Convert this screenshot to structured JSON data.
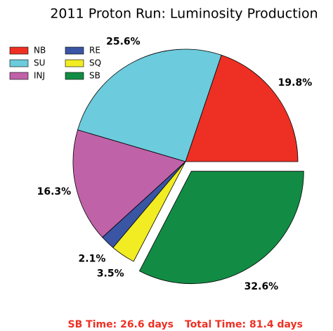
{
  "chart_data": {
    "type": "pie",
    "title": "2011 Proton Run: Luminosity Production",
    "categories": [
      "NB",
      "SU",
      "INJ",
      "RE",
      "SQ",
      "SB"
    ],
    "values": [
      19.8,
      25.6,
      16.3,
      2.1,
      3.5,
      32.6
    ],
    "value_labels": [
      "19.8%",
      "25.6%",
      "16.3%",
      "2.1%",
      "3.5%",
      "32.6%"
    ],
    "colors": [
      "#ee3024",
      "#6ccbdc",
      "#c062a8",
      "#3a55a4",
      "#f2ec23",
      "#128c44"
    ],
    "explode": [
      false,
      false,
      false,
      false,
      false,
      true
    ],
    "legend": "upper left",
    "annotations": [
      "SB Time: 26.6 days",
      "Total Time: 81.4 days"
    ]
  }
}
